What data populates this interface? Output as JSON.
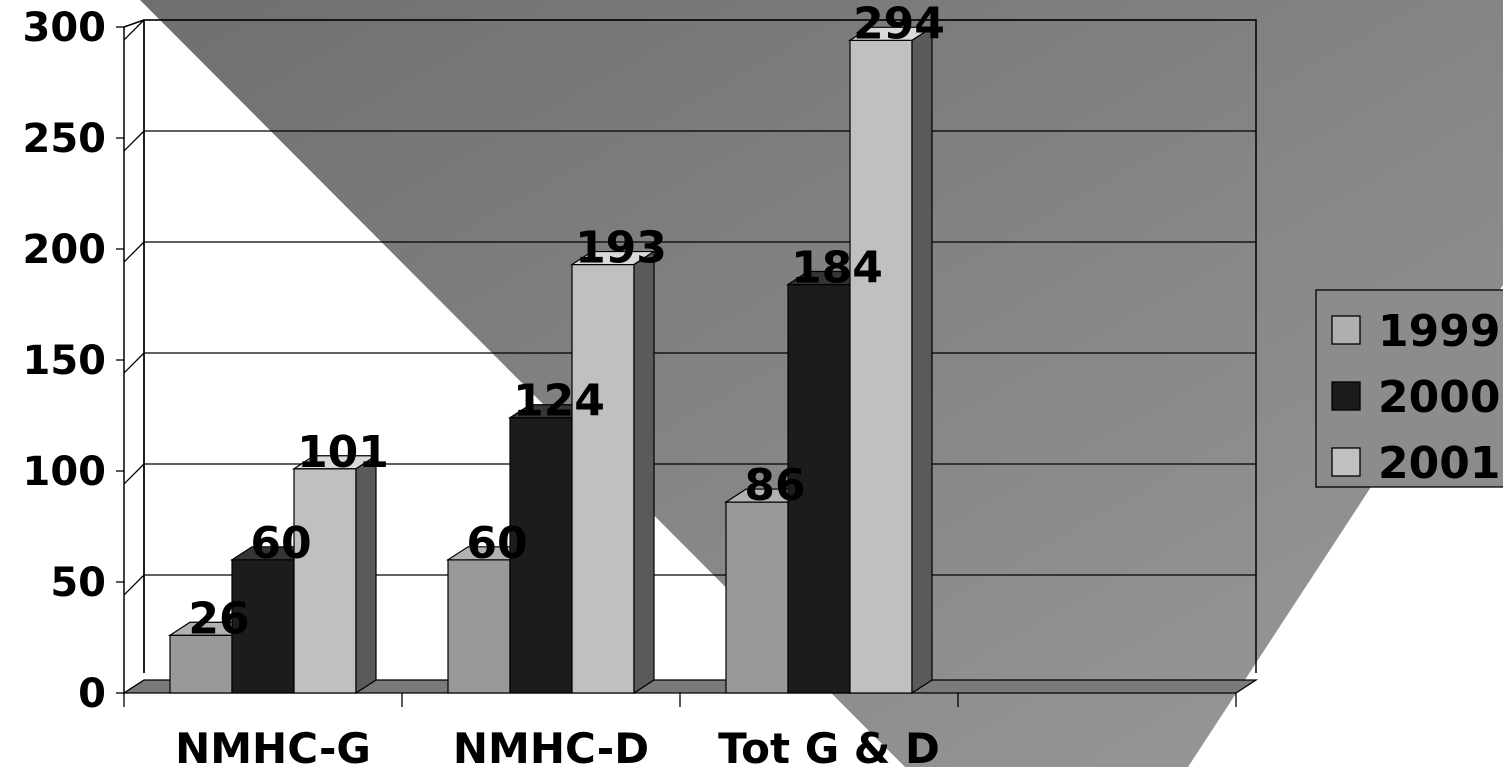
{
  "chart_data": {
    "type": "bar",
    "title": "",
    "xlabel": "",
    "ylabel": "",
    "categories": [
      "NMHC-G",
      "NMHC-D",
      "Tot G & D",
      ""
    ],
    "series": [
      {
        "name": "1999",
        "values": [
          26,
          60,
          86,
          null
        ],
        "color": "#999999"
      },
      {
        "name": "2000",
        "values": [
          60,
          124,
          184,
          null
        ],
        "color": "#1c1c1c"
      },
      {
        "name": "2001",
        "values": [
          101,
          193,
          294,
          null
        ],
        "color": "#c0c0c0"
      }
    ],
    "ylim": [
      0,
      300
    ],
    "yticks": [
      0,
      50,
      100,
      150,
      200,
      250,
      300
    ],
    "grid": true,
    "legend_position": "right",
    "data_labels": true,
    "style": "3d-clustered-column",
    "colors": {
      "background_light": "#ffffff",
      "background_dark": "#7f7f7f",
      "floor": "#7a7a7a",
      "side_shade": "#5a5a5a",
      "gridline": "#000000"
    }
  }
}
